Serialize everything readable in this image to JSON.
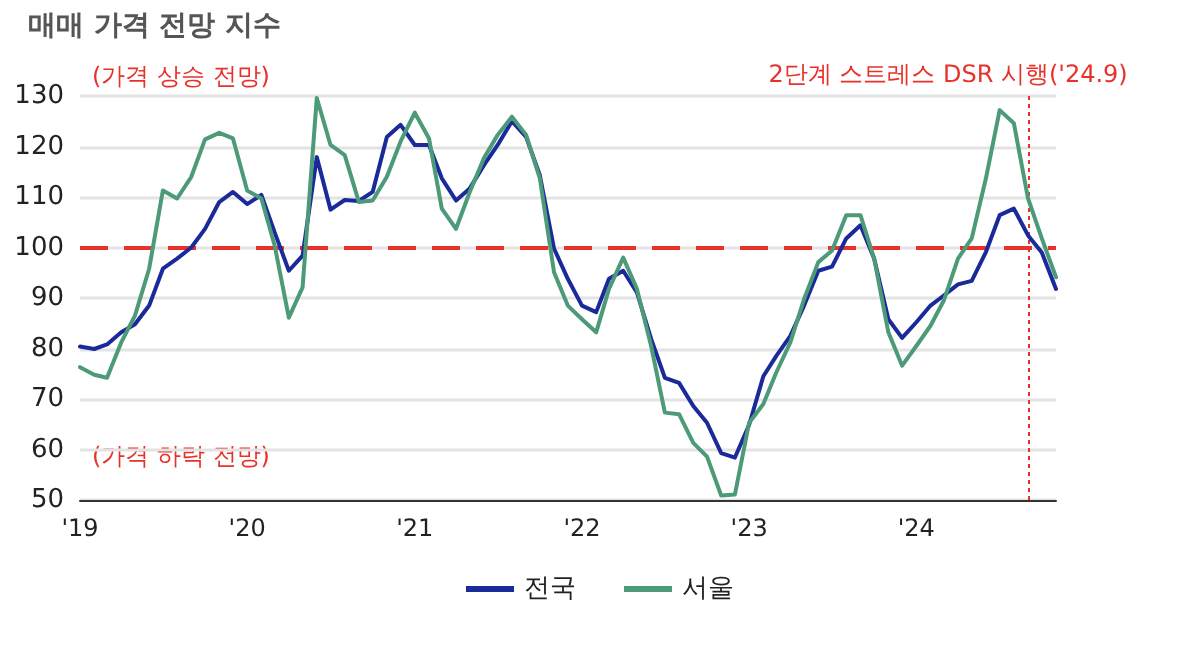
{
  "chart_data": {
    "type": "line",
    "title": "매매 가격 전망 지수",
    "annotations": [
      "(가격 상승 전망)",
      "(가격 하락 전망)"
    ],
    "x": [
      "2019-01",
      "2019-02",
      "2019-03",
      "2019-04",
      "2019-05",
      "2019-06",
      "2019-07",
      "2019-08",
      "2019-09",
      "2019-10",
      "2019-11",
      "2019-12",
      "2020-01",
      "2020-02",
      "2020-03",
      "2020-04",
      "2020-05",
      "2020-06",
      "2020-07",
      "2020-08",
      "2020-09",
      "2020-10",
      "2020-11",
      "2020-12",
      "2021-01",
      "2021-02",
      "2021-03",
      "2021-04",
      "2021-05",
      "2021-06",
      "2021-07",
      "2021-08",
      "2021-09",
      "2021-10",
      "2021-11",
      "2021-12",
      "2022-01",
      "2022-02",
      "2022-03",
      "2022-04",
      "2022-05",
      "2022-06",
      "2022-07",
      "2022-08",
      "2022-09",
      "2022-10",
      "2022-11",
      "2022-12",
      "2023-01",
      "2023-02",
      "2023-03",
      "2023-04",
      "2023-05",
      "2023-06",
      "2023-07",
      "2023-08",
      "2023-09",
      "2023-10",
      "2023-11",
      "2023-12",
      "2024-01",
      "2024-02",
      "2024-03",
      "2024-04",
      "2024-05",
      "2024-06",
      "2024-07",
      "2024-08",
      "2024-09",
      "2024-10",
      "2024-11"
    ],
    "series": [
      {
        "name": "전국",
        "color": "#1b2a9a",
        "values": [
          80.4,
          79.9,
          80.8,
          83.2,
          84.8,
          88.5,
          95.8,
          97.8,
          100,
          103.7,
          109,
          111,
          108.6,
          110.4,
          103,
          95.4,
          98.4,
          117.9,
          107.5,
          109.4,
          109.2,
          111,
          121.9,
          124.3,
          120.3,
          120.3,
          113.7,
          109.3,
          111.7,
          116.3,
          120.3,
          125,
          121.9,
          114.3,
          99.8,
          93.8,
          88.5,
          87.2,
          93.8,
          95.4,
          91.1,
          81.9,
          74.2,
          73.2,
          68.6,
          65.3,
          59.3,
          58.4,
          64.9,
          74.5,
          78.5,
          82.5,
          88.5,
          95.4,
          96.2,
          101.8,
          104.4,
          97.8,
          85.8,
          82.1,
          85.2,
          88.5,
          90.5,
          92.7,
          93.4,
          99.1,
          106.4,
          107.7,
          102.4,
          99,
          91.8
        ]
      },
      {
        "name": "서울",
        "color": "#4c9a78",
        "values": [
          76.3,
          74.8,
          74.2,
          81.2,
          86.5,
          95.8,
          111.3,
          109.7,
          114,
          121.4,
          122.7,
          121.6,
          111.3,
          109.7,
          100.4,
          86.1,
          92.1,
          129.6,
          120.3,
          118.3,
          109,
          109.3,
          114,
          121,
          126.7,
          121.6,
          107.7,
          103.7,
          111,
          117.7,
          122.3,
          125.9,
          122.3,
          113.7,
          95.1,
          88.5,
          85.8,
          83.2,
          91.8,
          98,
          91.8,
          80.5,
          67.3,
          67,
          61.3,
          58.6,
          50.9,
          51.1,
          65.3,
          69,
          75.2,
          81.2,
          89.8,
          97.1,
          99.4,
          106.4,
          106.4,
          97.8,
          83.2,
          76.6,
          80.5,
          84.5,
          89.5,
          97.8,
          101.8,
          113.7,
          127.2,
          124.6,
          109.7,
          101.8,
          94.1
        ]
      }
    ],
    "xlim": [
      "2019-01",
      "2024-11"
    ],
    "xticks": [
      {
        "value": "2019-01",
        "label": "'19"
      },
      {
        "value": "2020-01",
        "label": "'20"
      },
      {
        "value": "2021-01",
        "label": "'21"
      },
      {
        "value": "2022-01",
        "label": "'22"
      },
      {
        "value": "2023-01",
        "label": "'23"
      },
      {
        "value": "2024-01",
        "label": "'24"
      }
    ],
    "ylim": [
      50,
      130
    ],
    "yticks": [
      50,
      60,
      70,
      80,
      90,
      100,
      110,
      120,
      130
    ],
    "ref_lines": [
      {
        "axis": "y",
        "value": 100,
        "color": "#e8312a",
        "line_style": "dashed"
      },
      {
        "axis": "x",
        "value": "2024-09",
        "label": "2단계 스트레스 DSR 시행('24.9)",
        "color": "#e8312a",
        "line_style": "dotted"
      }
    ],
    "grid": "y",
    "legend": "bottom",
    "marker": "none",
    "line_style": "solid"
  }
}
